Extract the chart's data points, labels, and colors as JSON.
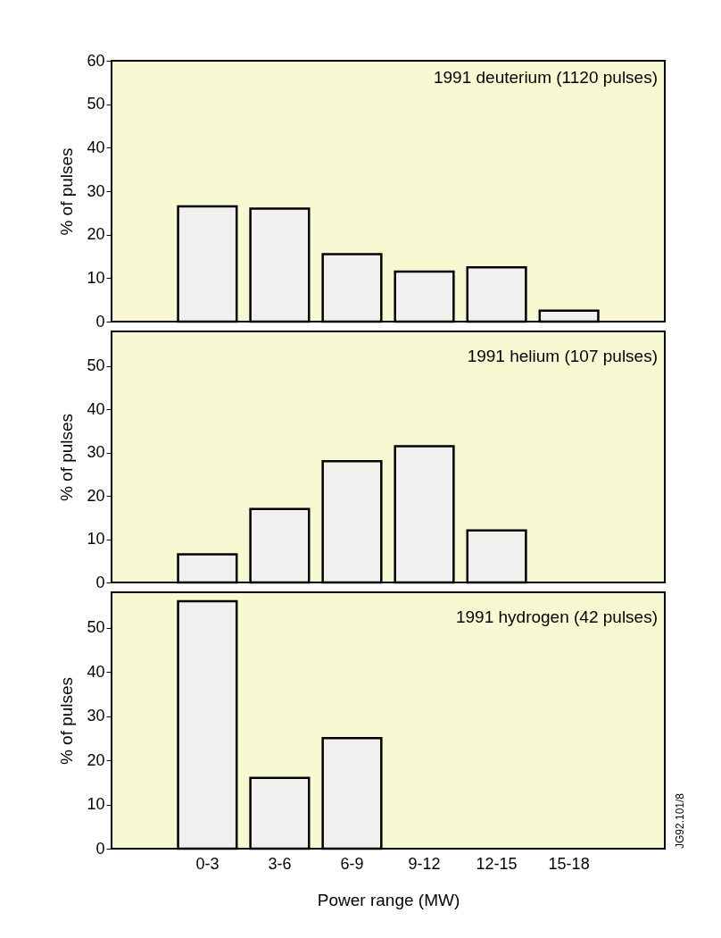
{
  "chart_data": [
    {
      "type": "bar",
      "title": "1991 deuterium (1120 pulses)",
      "ylabel": "% of pulses",
      "categories": [
        "0-3",
        "3-6",
        "6-9",
        "9-12",
        "12-15",
        "15-18"
      ],
      "values": [
        26.5,
        26,
        15.5,
        11.5,
        12.5,
        2.5
      ],
      "color": "#f0f0ee",
      "ylim": [
        0,
        60
      ],
      "yticks": [
        0,
        10,
        20,
        30,
        40,
        50,
        60
      ],
      "tick_labels": "y"
    },
    {
      "type": "bar",
      "title": "1991 helium (107 pulses)",
      "ylabel": "% of pulses",
      "categories": [
        "0-3",
        "3-6",
        "6-9",
        "9-12",
        "12-15",
        "15-18"
      ],
      "values": [
        6.5,
        17,
        28,
        31.5,
        12,
        null
      ],
      "color": "#f0f0ee",
      "ylim": [
        0,
        58
      ],
      "yticks": [
        0,
        10,
        20,
        30,
        40,
        50
      ],
      "tick_labels": "y"
    },
    {
      "type": "bar",
      "title": "1991 hydrogen (42 pulses)",
      "ylabel": "% of pulses",
      "xlabel": "Power range (MW)",
      "categories": [
        "0-3",
        "3-6",
        "6-9",
        "9-12",
        "12-15",
        "15-18"
      ],
      "values": [
        56,
        16,
        25,
        null,
        null,
        null
      ],
      "color": "#f0f0ee",
      "ylim": [
        0,
        58
      ],
      "yticks": [
        0,
        10,
        20,
        30,
        40,
        50
      ],
      "annotations": [
        "JG92.101/8"
      ]
    }
  ]
}
